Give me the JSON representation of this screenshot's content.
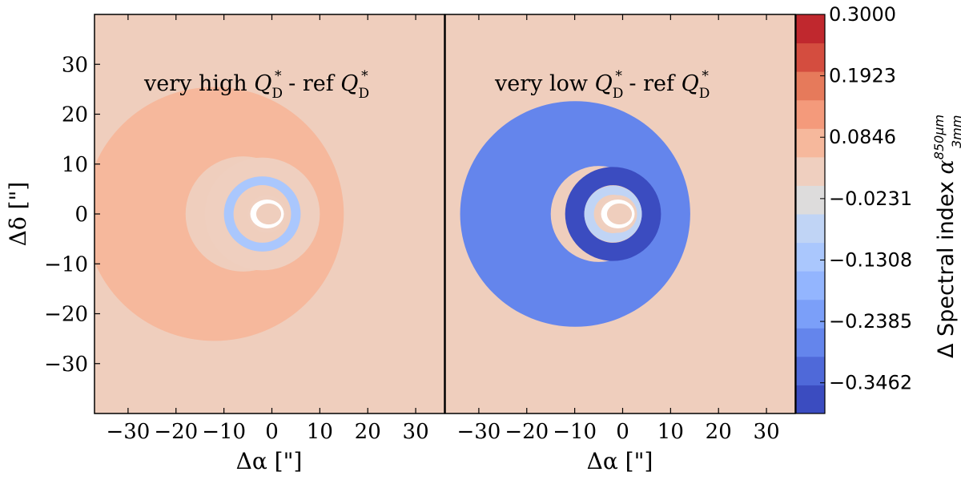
{
  "chart_data": {
    "type": "heatmap",
    "description_kind": "two-panel spectral index difference maps",
    "x_range": [
      -37,
      36
    ],
    "y_range": [
      -40,
      40
    ],
    "xticks": [
      -30,
      -20,
      -10,
      0,
      10,
      20,
      30
    ],
    "yticks": [
      -30,
      -20,
      -10,
      0,
      10,
      20,
      30
    ],
    "xtick_labels": [
      "−30",
      "−20",
      "−10",
      "0",
      "10",
      "20",
      "30"
    ],
    "ytick_labels": [
      "−30",
      "−20",
      "−10",
      "0",
      "10",
      "20",
      "30"
    ],
    "xlabel": "Δα [\"]",
    "ylabel": "Δδ [\"]",
    "panels": [
      {
        "title_prefix": "very high ",
        "title_q": "Q",
        "title_sub": "D",
        "title_sup": "*",
        "title_mid": " - ref ",
        "title_q2": "Q",
        "title_sub2": "D",
        "title_sup2": "*",
        "background_value": 0.0,
        "rings": [
          {
            "name": "outer-ring",
            "center": [
              -6,
              0
            ],
            "r_in": 12,
            "r_out": 27,
            "value": 0.08,
            "width_left": 1.0,
            "width_right": 0.2
          },
          {
            "name": "mid-ring",
            "center": [
              -2,
              0
            ],
            "r_in": 8,
            "r_out": 12,
            "value": 0.01,
            "width_left": 1.0,
            "width_right": 1.0
          },
          {
            "name": "inner-ring",
            "center": [
              -2,
              0
            ],
            "r_in": 6,
            "r_out": 8,
            "value": -0.15,
            "width_left": 1.0,
            "width_right": 1.0
          },
          {
            "name": "core",
            "center": [
              -1,
              0
            ],
            "r_in": 0,
            "r_out": 4,
            "value": 0.02,
            "width_left": 1.0,
            "width_right": 1.0
          }
        ]
      },
      {
        "title_prefix": "very low ",
        "title_q": "Q",
        "title_sub": "D",
        "title_sup": "*",
        "title_mid": " - ref ",
        "title_q2": "Q",
        "title_sub2": "D",
        "title_sup2": "*",
        "background_value": 0.0,
        "rings": [
          {
            "name": "outer-ring",
            "center": [
              -5,
              0
            ],
            "r_in": 10,
            "r_out": 24,
            "value": -0.3,
            "width_left": 1.0,
            "width_right": 0.3
          },
          {
            "name": "mid-ring",
            "center": [
              -2,
              0
            ],
            "r_in": 6,
            "r_out": 10,
            "value": -0.38,
            "width_left": 1.0,
            "width_right": 1.0
          },
          {
            "name": "inner-ring",
            "center": [
              -2,
              0
            ],
            "r_in": 4,
            "r_out": 6,
            "value": -0.1,
            "width_left": 1.0,
            "width_right": 1.0
          },
          {
            "name": "core",
            "center": [
              -1,
              0
            ],
            "r_in": 0,
            "r_out": 4,
            "value": 0.02,
            "width_left": 1.0,
            "width_right": 1.0
          }
        ]
      }
    ],
    "colorbar": {
      "vmin": -0.4,
      "vmax": 0.3,
      "levels": 13,
      "tick_values": [
        0.3,
        0.1923,
        0.0846,
        -0.0231,
        -0.1308,
        -0.2385,
        -0.3462
      ],
      "tick_labels": [
        "0.3000",
        "0.1923",
        "0.0846",
        "−0.0231",
        "−0.1308",
        "−0.2385",
        "−0.3462"
      ],
      "label_main": "Δ Spectral index ",
      "label_symbol": "α",
      "label_sup": "850μm",
      "label_sub": "3mm",
      "colors": [
        "#3b4cc0",
        "#4f69d9",
        "#6485ec",
        "#7b9ff9",
        "#93b5fe",
        "#aac7fd",
        "#c0d4f5",
        "#dddcdc",
        "#efcfbf",
        "#f6b89c",
        "#f49a7b",
        "#e67a5b",
        "#d44d3f",
        "#c0282e"
      ]
    },
    "background_color": "#efcebd"
  }
}
